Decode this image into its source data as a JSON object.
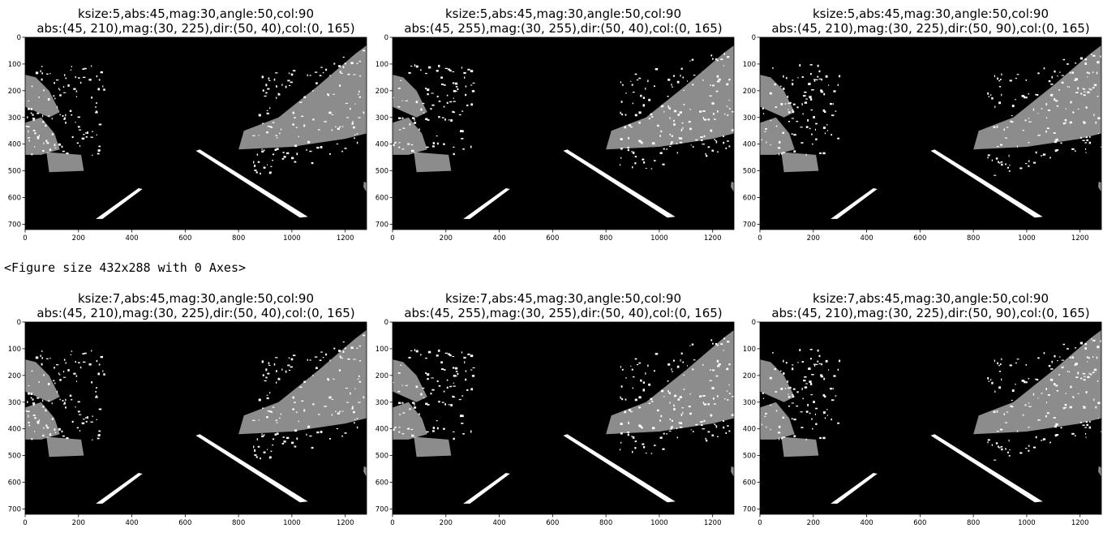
{
  "chart_data": [
    {
      "type": "image",
      "title": [
        "ksize:5,abs:45,mag:30,angle:50,col:90",
        "abs:(45, 210),mag:(30, 225),dir:(50, 40),col:(0, 165)"
      ],
      "xlim": [
        0,
        1280
      ],
      "ylim": [
        720,
        0
      ],
      "xticks": [
        0,
        200,
        400,
        600,
        800,
        1000,
        1200
      ],
      "yticks": [
        0,
        100,
        200,
        300,
        400,
        500,
        600,
        700
      ]
    },
    {
      "type": "image",
      "title": [
        "ksize:5,abs:45,mag:30,angle:50,col:90",
        "abs:(45, 255),mag:(30, 255),dir:(50, 40),col:(0, 165)"
      ],
      "xlim": [
        0,
        1280
      ],
      "ylim": [
        720,
        0
      ],
      "xticks": [
        0,
        200,
        400,
        600,
        800,
        1000,
        1200
      ],
      "yticks": [
        0,
        100,
        200,
        300,
        400,
        500,
        600,
        700
      ]
    },
    {
      "type": "image",
      "title": [
        "ksize:5,abs:45,mag:30,angle:50,col:90",
        "abs:(45, 210),mag:(30, 225),dir:(50, 90),col:(0, 165)"
      ],
      "xlim": [
        0,
        1280
      ],
      "ylim": [
        720,
        0
      ],
      "xticks": [
        0,
        200,
        400,
        600,
        800,
        1000,
        1200
      ],
      "yticks": [
        0,
        100,
        200,
        300,
        400,
        500,
        600,
        700
      ]
    },
    {
      "type": "image",
      "title": [
        "ksize:7,abs:45,mag:30,angle:50,col:90",
        "abs:(45, 210),mag:(30, 225),dir:(50, 40),col:(0, 165)"
      ],
      "xlim": [
        0,
        1280
      ],
      "ylim": [
        720,
        0
      ],
      "xticks": [
        0,
        200,
        400,
        600,
        800,
        1000,
        1200
      ],
      "yticks": [
        0,
        100,
        200,
        300,
        400,
        500,
        600,
        700
      ]
    },
    {
      "type": "image",
      "title": [
        "ksize:7,abs:45,mag:30,angle:50,col:90",
        "abs:(45, 255),mag:(30, 255),dir:(50, 40),col:(0, 165)"
      ],
      "xlim": [
        0,
        1280
      ],
      "ylim": [
        720,
        0
      ],
      "xticks": [
        0,
        200,
        400,
        600,
        800,
        1000,
        1200
      ],
      "yticks": [
        0,
        100,
        200,
        300,
        400,
        500,
        600,
        700
      ]
    },
    {
      "type": "image",
      "title": [
        "ksize:7,abs:45,mag:30,angle:50,col:90",
        "abs:(45, 210),mag:(30, 225),dir:(50, 90),col:(0, 165)"
      ],
      "xlim": [
        0,
        1280
      ],
      "ylim": [
        720,
        0
      ],
      "xticks": [
        0,
        200,
        400,
        600,
        800,
        1000,
        1200
      ],
      "yticks": [
        0,
        100,
        200,
        300,
        400,
        500,
        600,
        700
      ]
    }
  ],
  "output_text": "<Figure size 432x288 with 0 Axes>"
}
